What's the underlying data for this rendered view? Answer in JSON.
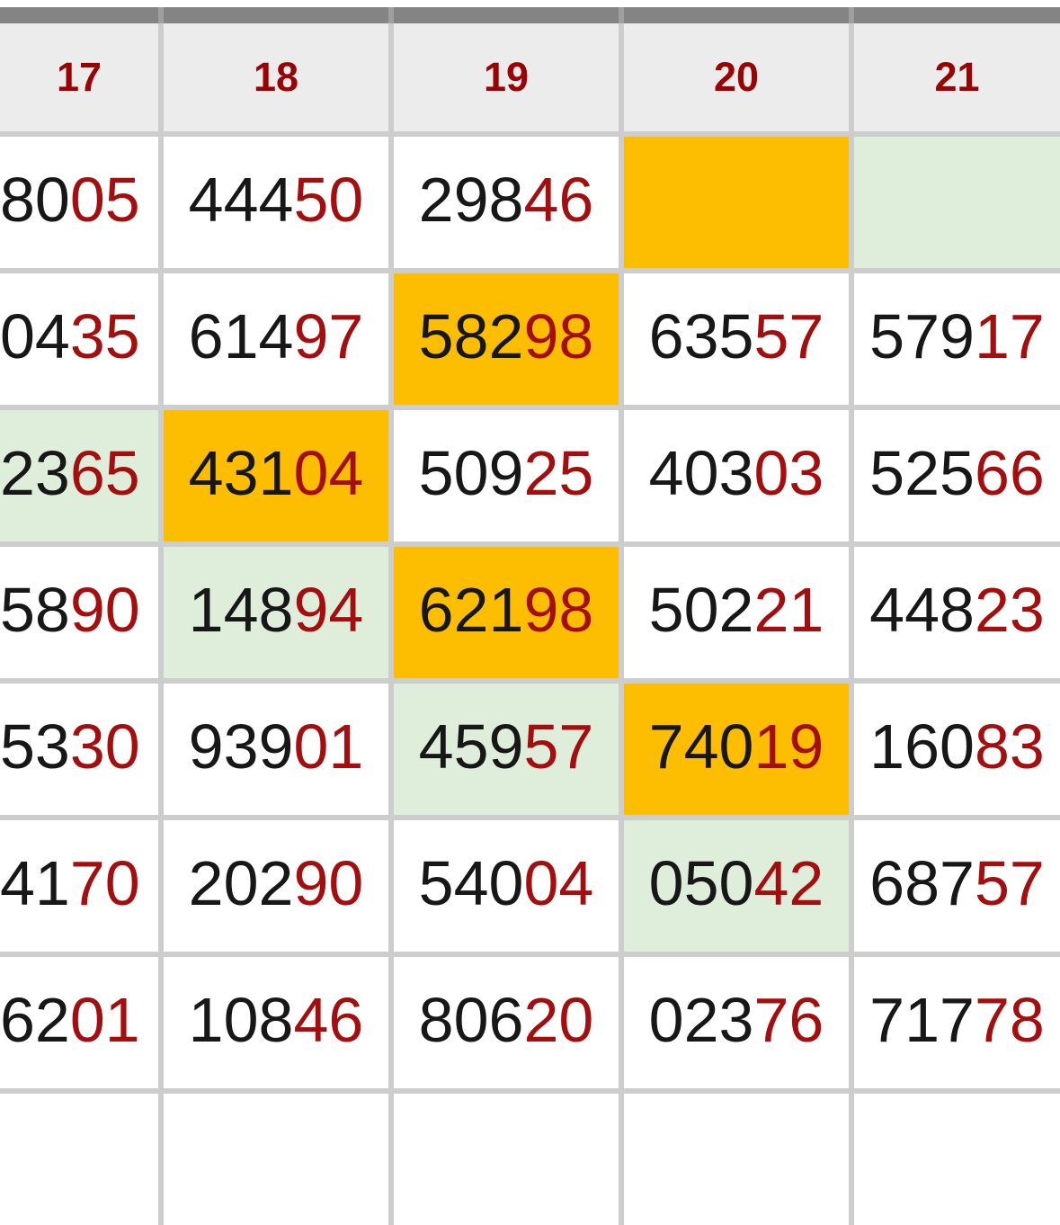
{
  "colors": {
    "top_bar": "#848484",
    "grid_line": "#cdcdcd",
    "header_bg": "#ececec",
    "header_text": "#9a0303",
    "digit_black": "#171717",
    "digit_red": "#a40e0e",
    "highlight_orange": "#fdbd00",
    "highlight_green": "#dfeeda"
  },
  "header": {
    "columns": [
      "17",
      "18",
      "19",
      "20",
      "21"
    ]
  },
  "rows": [
    {
      "cells": [
        {
          "black": "80",
          "red": "05",
          "bg": "white"
        },
        {
          "black": "444",
          "red": "50",
          "bg": "white"
        },
        {
          "black": "298",
          "red": "46",
          "bg": "white"
        },
        {
          "black": "",
          "red": "",
          "bg": "orange"
        },
        {
          "black": "",
          "red": "",
          "bg": "green"
        }
      ]
    },
    {
      "cells": [
        {
          "black": "04",
          "red": "35",
          "bg": "white"
        },
        {
          "black": "614",
          "red": "97",
          "bg": "white"
        },
        {
          "black": "582",
          "red": "98",
          "bg": "orange"
        },
        {
          "black": "635",
          "red": "57",
          "bg": "white"
        },
        {
          "black": "579",
          "red": "17",
          "bg": "white"
        }
      ]
    },
    {
      "cells": [
        {
          "black": "23",
          "red": "65",
          "bg": "green"
        },
        {
          "black": "431",
          "red": "04",
          "bg": "orange"
        },
        {
          "black": "509",
          "red": "25",
          "bg": "white"
        },
        {
          "black": "403",
          "red": "03",
          "bg": "white"
        },
        {
          "black": "525",
          "red": "66",
          "bg": "white"
        }
      ]
    },
    {
      "cells": [
        {
          "black": "58",
          "red": "90",
          "bg": "white"
        },
        {
          "black": "148",
          "red": "94",
          "bg": "green"
        },
        {
          "black": "621",
          "red": "98",
          "bg": "orange"
        },
        {
          "black": "502",
          "red": "21",
          "bg": "white"
        },
        {
          "black": "448",
          "red": "23",
          "bg": "white"
        }
      ]
    },
    {
      "cells": [
        {
          "black": "53",
          "red": "30",
          "bg": "white"
        },
        {
          "black": "939",
          "red": "01",
          "bg": "white"
        },
        {
          "black": "459",
          "red": "57",
          "bg": "green"
        },
        {
          "black": "740",
          "red": "19",
          "bg": "orange"
        },
        {
          "black": "160",
          "red": "83",
          "bg": "white"
        }
      ]
    },
    {
      "cells": [
        {
          "black": "41",
          "red": "70",
          "bg": "white"
        },
        {
          "black": "202",
          "red": "90",
          "bg": "white"
        },
        {
          "black": "540",
          "red": "04",
          "bg": "white"
        },
        {
          "black": "050",
          "red": "42",
          "bg": "green"
        },
        {
          "black": "687",
          "red": "57",
          "bg": "white"
        }
      ]
    },
    {
      "cells": [
        {
          "black": "62",
          "red": "01",
          "bg": "white"
        },
        {
          "black": "108",
          "red": "46",
          "bg": "white"
        },
        {
          "black": "806",
          "red": "20",
          "bg": "white"
        },
        {
          "black": "023",
          "red": "76",
          "bg": "white"
        },
        {
          "black": "717",
          "red": "78",
          "bg": "white"
        }
      ]
    },
    {
      "cells": [
        {
          "black": "",
          "red": "",
          "bg": "white"
        },
        {
          "black": "",
          "red": "",
          "bg": "white"
        },
        {
          "black": "",
          "red": "",
          "bg": "white"
        },
        {
          "black": "",
          "red": "",
          "bg": "white"
        },
        {
          "black": "",
          "red": "",
          "bg": "white"
        }
      ]
    }
  ]
}
